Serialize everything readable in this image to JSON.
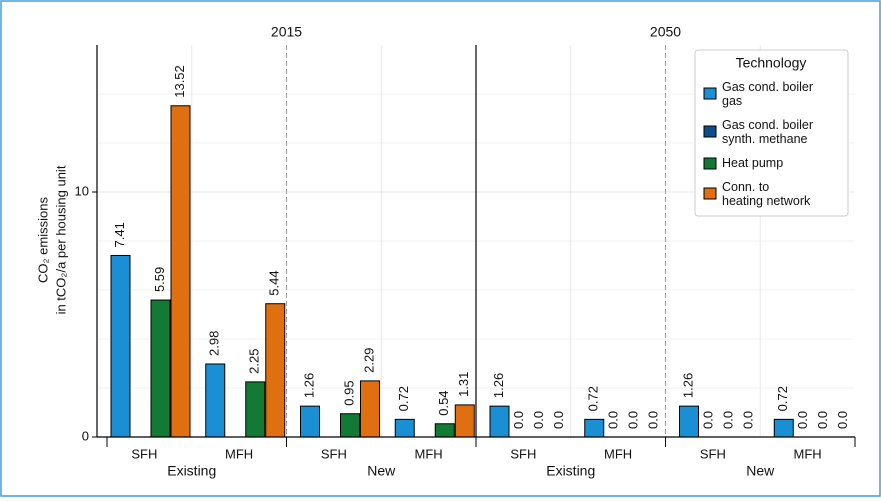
{
  "chart_data": {
    "type": "bar",
    "panels": [
      "2015",
      "2050"
    ],
    "category_groups": [
      "Existing",
      "New",
      "Existing",
      "New"
    ],
    "categories": [
      "SFH",
      "MFH",
      "SFH",
      "MFH",
      "SFH",
      "MFH",
      "SFH",
      "MFH"
    ],
    "ylabel": [
      "CO₂ emissions",
      "in tCO₂/a per housing unit"
    ],
    "ylim": [
      0,
      16
    ],
    "yticks": [
      0,
      10
    ],
    "minor_yticks": [
      2,
      4,
      6,
      8,
      12,
      14
    ],
    "grid": true,
    "legend": {
      "title": "Technology",
      "position": "upper right"
    },
    "series": [
      {
        "name": "Gas cond. boiler\ngas",
        "color": "#1a8fd4",
        "values": [
          7.41,
          2.98,
          1.26,
          0.72,
          1.26,
          0.72,
          1.26,
          0.72
        ]
      },
      {
        "name": "Gas cond. boiler\nsynth. methane",
        "color": "#0c4f8c",
        "values": [
          null,
          null,
          null,
          null,
          0,
          0,
          0,
          0
        ],
        "value_labels": [
          null,
          null,
          null,
          null,
          "0.0",
          "0.0",
          "0.0",
          "0.0"
        ]
      },
      {
        "name": "Heat pump",
        "color": "#137a36",
        "values": [
          5.59,
          2.25,
          0.95,
          0.54,
          0,
          0,
          0,
          0
        ],
        "value_labels": [
          "5.59",
          "2.25",
          "0.95",
          "0.54",
          "0.0",
          "0.0",
          "0.0",
          "0.0"
        ]
      },
      {
        "name": "Conn. to\nheating network",
        "color": "#e0700f",
        "values": [
          13.52,
          5.44,
          2.29,
          1.31,
          0,
          0,
          0,
          0
        ],
        "value_labels": [
          "13.52",
          "5.44",
          "2.29",
          "1.31",
          "0.0",
          "0.0",
          "0.0",
          "0.0"
        ]
      }
    ]
  }
}
